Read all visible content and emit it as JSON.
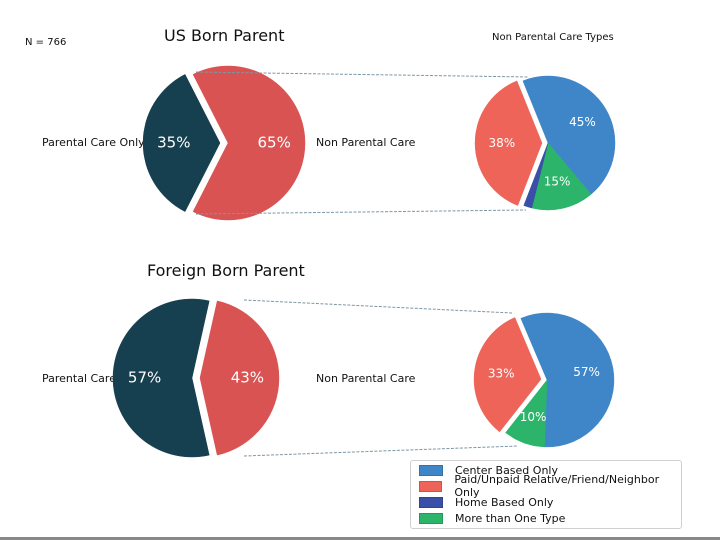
{
  "header": {
    "n_label": "N = 766",
    "right_title": "Non Parental Care Types"
  },
  "colors": {
    "parental": "#163f4f",
    "non_parental": "#d95353",
    "center_based": "#3f86c8",
    "relative": "#ef6458",
    "home_based": "#3a4fa8",
    "more_than_one": "#2cb46a"
  },
  "chart_data": [
    {
      "type": "pie",
      "title": "US Born Parent",
      "labels": [
        "Parental Care Only",
        "Non Parental Care"
      ],
      "values": [
        35,
        65
      ],
      "value_labels": [
        "35%",
        "65%"
      ],
      "exploded": "Non Parental Care"
    },
    {
      "type": "pie",
      "title": "Non Parental Care Types (US Born Parent)",
      "labels": [
        "Center Based Only",
        "Paid/Unpaid Relative/Friend/Neighbor Only",
        "Home Based Only",
        "More than One Type"
      ],
      "values": [
        45,
        38,
        2,
        15
      ],
      "value_labels": [
        "45%",
        "38%",
        "",
        "15%"
      ],
      "exploded": "Paid/Unpaid Relative/Friend/Neighbor Only"
    },
    {
      "type": "pie",
      "title": "Foreign Born Parent",
      "labels": [
        "Parental Care Only",
        "Non Parental Care"
      ],
      "values": [
        57,
        43
      ],
      "value_labels": [
        "57%",
        "43%"
      ],
      "exploded": "Non Parental Care"
    },
    {
      "type": "pie",
      "title": "Non Parental Care Types (Foreign Born Parent)",
      "labels": [
        "Center Based Only",
        "Paid/Unpaid Relative/Friend/Neighbor Only",
        "Home Based Only",
        "More than One Type"
      ],
      "values": [
        57,
        33,
        0,
        10
      ],
      "value_labels": [
        "57%",
        "33%",
        "",
        "10%"
      ],
      "exploded": "Paid/Unpaid Relative/Friend/Neighbor Only"
    }
  ],
  "panels": {
    "us": {
      "title": "US Born Parent",
      "left_label": "Parental Care Only",
      "right_label": "Non Parental Care"
    },
    "fb": {
      "title": "Foreign Born Parent",
      "left_label": "Parental Care Only",
      "right_label": "Non Parental Care"
    }
  },
  "legend": {
    "items": [
      {
        "label": "Center Based Only",
        "color": "#3f86c8"
      },
      {
        "label": "Paid/Unpaid Relative/Friend/Neighbor Only",
        "color": "#ef6458"
      },
      {
        "label": "Home Based Only",
        "color": "#3a4fa8"
      },
      {
        "label": "More than One Type",
        "color": "#2cb46a"
      }
    ]
  }
}
